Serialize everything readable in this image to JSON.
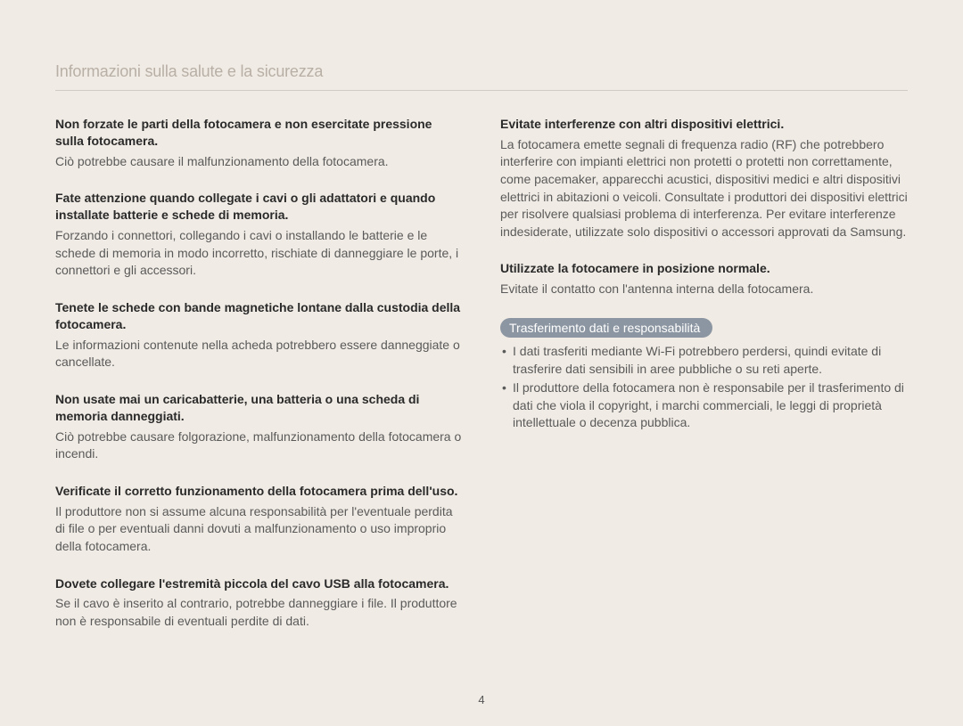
{
  "header": {
    "title": "Informazioni sulla salute e la sicurezza"
  },
  "left": {
    "sections": [
      {
        "heading": "Non forzate le parti della fotocamera e non esercitate pressione sulla fotocamera.",
        "body": "Ciò potrebbe causare il malfunzionamento della fotocamera."
      },
      {
        "heading": "Fate attenzione quando collegate i cavi o gli adattatori e quando installate batterie e schede di memoria.",
        "body": "Forzando i connettori, collegando i cavi o installando le batterie e le schede di memoria in modo incorretto, rischiate di danneggiare le porte, i connettori e gli accessori."
      },
      {
        "heading": "Tenete le schede con bande magnetiche lontane dalla custodia della fotocamera.",
        "body": "Le informazioni contenute nella acheda potrebbero essere danneggiate o cancellate."
      },
      {
        "heading": "Non usate mai un caricabatterie, una batteria o una scheda di memoria danneggiati.",
        "body": "Ciò potrebbe causare folgorazione, malfunzionamento della fotocamera o incendi."
      },
      {
        "heading": "Verificate il corretto funzionamento della fotocamera prima dell'uso.",
        "body": "Il produttore non si assume alcuna responsabilità per l'eventuale perdita di file o per eventuali danni dovuti a malfunzionamento o uso improprio della fotocamera."
      },
      {
        "heading": "Dovete collegare l'estremità piccola del cavo USB alla fotocamera.",
        "body": "Se il cavo è inserito al contrario, potrebbe danneggiare i file. Il produttore non è responsabile di eventuali perdite di dati."
      }
    ]
  },
  "right": {
    "sections": [
      {
        "heading": "Evitate interferenze con altri dispositivi elettrici.",
        "body": "La fotocamera emette segnali di frequenza radio (RF) che potrebbero interferire con impianti elettrici non protetti o protetti non correttamente, come pacemaker, apparecchi acustici, dispositivi medici e altri dispositivi elettrici in abitazioni o veicoli. Consultate i produttori dei dispositivi elettrici per risolvere qualsiasi problema di interferenza. Per evitare interferenze indesiderate, utilizzate solo dispositivi o accessori approvati da Samsung."
      },
      {
        "heading": "Utilizzate la fotocamere in posizione normale.",
        "body": "Evitate il contatto con l'antenna interna della fotocamera."
      }
    ],
    "pill": "Trasferimento dati e responsabilità",
    "bullets": [
      "I dati trasferiti mediante Wi-Fi potrebbero perdersi, quindi evitate di trasferire dati sensibili in aree pubbliche o su reti aperte.",
      "Il produttore della fotocamera non è responsabile per il trasferimento di dati che viola il copyright, i marchi commerciali, le leggi di proprietà intellettuale o decenza pubblica."
    ]
  },
  "pageNumber": "4"
}
